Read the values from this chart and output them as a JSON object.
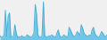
{
  "values": [
    0.5,
    0.3,
    0.4,
    0.6,
    3.5,
    0.4,
    2.8,
    3.2,
    0.3,
    0.4,
    0.5,
    1.8,
    0.8,
    0.3,
    0.4,
    0.3,
    0.5,
    0.4,
    0.3,
    0.4,
    0.6,
    0.5,
    0.4,
    0.3,
    0.5,
    0.8,
    4.2,
    3.0,
    0.6,
    0.4,
    0.3,
    0.5,
    4.5,
    0.5,
    0.4,
    0.3,
    0.5,
    0.4,
    0.6,
    0.5,
    0.4,
    0.3,
    0.8,
    1.2,
    0.5,
    0.4,
    0.3,
    0.6,
    0.5,
    0.4,
    0.3,
    1.5,
    1.2,
    0.8,
    0.5,
    0.4,
    0.6,
    1.0,
    0.8,
    0.5,
    1.8,
    1.4,
    0.8,
    0.6,
    0.5,
    0.4,
    0.6,
    0.5,
    1.2,
    1.5,
    0.8,
    0.5,
    0.4,
    0.3,
    0.6,
    1.0,
    0.8,
    0.5,
    0.4,
    0.6
  ],
  "line_color": "#4bafd6",
  "fill_color": "#6ec6e8",
  "background_color": "#f0f0f0",
  "linewidth": 0.7,
  "baseline": 0.0
}
